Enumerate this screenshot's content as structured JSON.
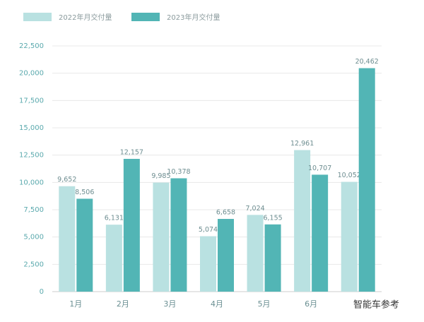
{
  "chart_data": {
    "type": "bar",
    "categories": [
      "1月",
      "2月",
      "3月",
      "4月",
      "5月",
      "6月",
      null
    ],
    "series": [
      {
        "name": "2022年月交付量",
        "color": "#b9e1e1",
        "values": [
          9652,
          6131,
          9985,
          5074,
          7024,
          12961,
          10052
        ],
        "value_labels": [
          "9,652",
          "6,131",
          "9,985",
          "5,074",
          "7,024",
          "12,961",
          "10,052"
        ]
      },
      {
        "name": "2023年月交付量",
        "color": "#52b5b5",
        "values": [
          8506,
          12157,
          10378,
          6658,
          6155,
          10707,
          20462
        ],
        "value_labels": [
          "8,506",
          "12,157",
          "10,378",
          "6,658",
          "6,155",
          "10,707",
          "20,462"
        ]
      }
    ],
    "ylim": [
      0,
      22500
    ],
    "yticks": [
      0,
      {
        "value": 2500,
        "label": "2,500"
      },
      {
        "value": 5000,
        "label": "5,000"
      },
      {
        "value": 7500,
        "label": "7,500"
      },
      {
        "value": 10000,
        "label": "10,000"
      },
      {
        "value": 12500,
        "label": "12,500"
      },
      {
        "value": 15000,
        "label": "15,000"
      },
      {
        "value": 17500,
        "label": "17,500"
      },
      {
        "value": 20000,
        "label": "20,000"
      },
      {
        "value": 22500,
        "label": "22,500"
      }
    ],
    "grid": true,
    "legend": "top",
    "annotation": "智能车参考"
  }
}
